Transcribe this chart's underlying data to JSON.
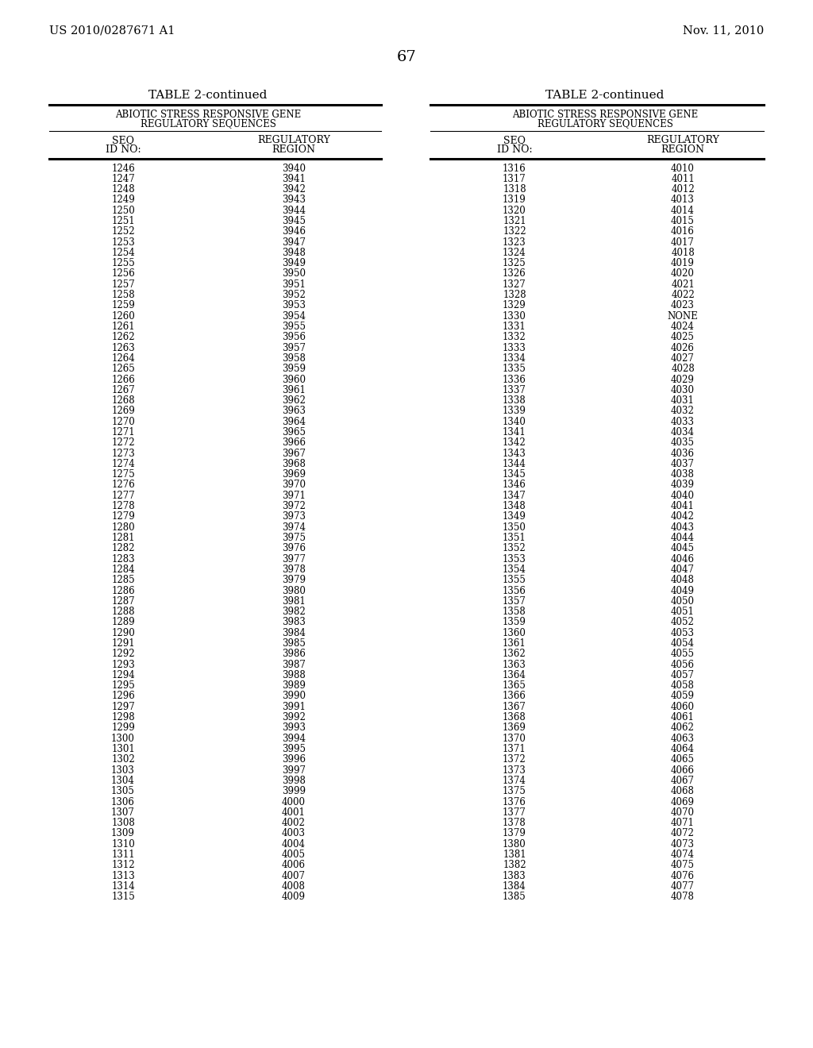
{
  "page_number": "67",
  "patent_left": "US 2010/0287671 A1",
  "patent_right": "Nov. 11, 2010",
  "background_color": "#ffffff",
  "table_title": "TABLE 2-continued",
  "table_subtitle1": "ABIOTIC STRESS RESPONSIVE GENE",
  "table_subtitle2": "REGULATORY SEQUENCES",
  "col1_header1": "SEQ",
  "col1_header2": "ID NO:",
  "col2_header1": "REGULATORY",
  "col2_header2": "REGION",
  "left_table": {
    "seq": [
      1246,
      1247,
      1248,
      1249,
      1250,
      1251,
      1252,
      1253,
      1254,
      1255,
      1256,
      1257,
      1258,
      1259,
      1260,
      1261,
      1262,
      1263,
      1264,
      1265,
      1266,
      1267,
      1268,
      1269,
      1270,
      1271,
      1272,
      1273,
      1274,
      1275,
      1276,
      1277,
      1278,
      1279,
      1280,
      1281,
      1282,
      1283,
      1284,
      1285,
      1286,
      1287,
      1288,
      1289,
      1290,
      1291,
      1292,
      1293,
      1294,
      1295,
      1296,
      1297,
      1298,
      1299,
      1300,
      1301,
      1302,
      1303,
      1304,
      1305,
      1306,
      1307,
      1308,
      1309,
      1310,
      1311,
      1312,
      1313,
      1314,
      1315
    ],
    "reg": [
      3940,
      3941,
      3942,
      3943,
      3944,
      3945,
      3946,
      3947,
      3948,
      3949,
      3950,
      3951,
      3952,
      3953,
      3954,
      3955,
      3956,
      3957,
      3958,
      3959,
      3960,
      3961,
      3962,
      3963,
      3964,
      3965,
      3966,
      3967,
      3968,
      3969,
      3970,
      3971,
      3972,
      3973,
      3974,
      3975,
      3976,
      3977,
      3978,
      3979,
      3980,
      3981,
      3982,
      3983,
      3984,
      3985,
      3986,
      3987,
      3988,
      3989,
      3990,
      3991,
      3992,
      3993,
      3994,
      3995,
      3996,
      3997,
      3998,
      3999,
      4000,
      4001,
      4002,
      4003,
      4004,
      4005,
      4006,
      4007,
      4008,
      4009
    ]
  },
  "right_table": {
    "seq": [
      1316,
      1317,
      1318,
      1319,
      1320,
      1321,
      1322,
      1323,
      1324,
      1325,
      1326,
      1327,
      1328,
      1329,
      1330,
      1331,
      1332,
      1333,
      1334,
      1335,
      1336,
      1337,
      1338,
      1339,
      1340,
      1341,
      1342,
      1343,
      1344,
      1345,
      1346,
      1347,
      1348,
      1349,
      1350,
      1351,
      1352,
      1353,
      1354,
      1355,
      1356,
      1357,
      1358,
      1359,
      1360,
      1361,
      1362,
      1363,
      1364,
      1365,
      1366,
      1367,
      1368,
      1369,
      1370,
      1371,
      1372,
      1373,
      1374,
      1375,
      1376,
      1377,
      1378,
      1379,
      1380,
      1381,
      1382,
      1383,
      1384,
      1385
    ],
    "reg": [
      "4010",
      "4011",
      "4012",
      "4013",
      "4014",
      "4015",
      "4016",
      "4017",
      "4018",
      "4019",
      "4020",
      "4021",
      "4022",
      "4023",
      "NONE",
      "4024",
      "4025",
      "4026",
      "4027",
      "4028",
      "4029",
      "4030",
      "4031",
      "4032",
      "4033",
      "4034",
      "4035",
      "4036",
      "4037",
      "4038",
      "4039",
      "4040",
      "4041",
      "4042",
      "4043",
      "4044",
      "4045",
      "4046",
      "4047",
      "4048",
      "4049",
      "4050",
      "4051",
      "4052",
      "4053",
      "4054",
      "4055",
      "4056",
      "4057",
      "4058",
      "4059",
      "4060",
      "4061",
      "4062",
      "4063",
      "4064",
      "4065",
      "4066",
      "4067",
      "4068",
      "4069",
      "4070",
      "4071",
      "4072",
      "4073",
      "4074",
      "4075",
      "4076",
      "4077",
      "4078"
    ]
  }
}
